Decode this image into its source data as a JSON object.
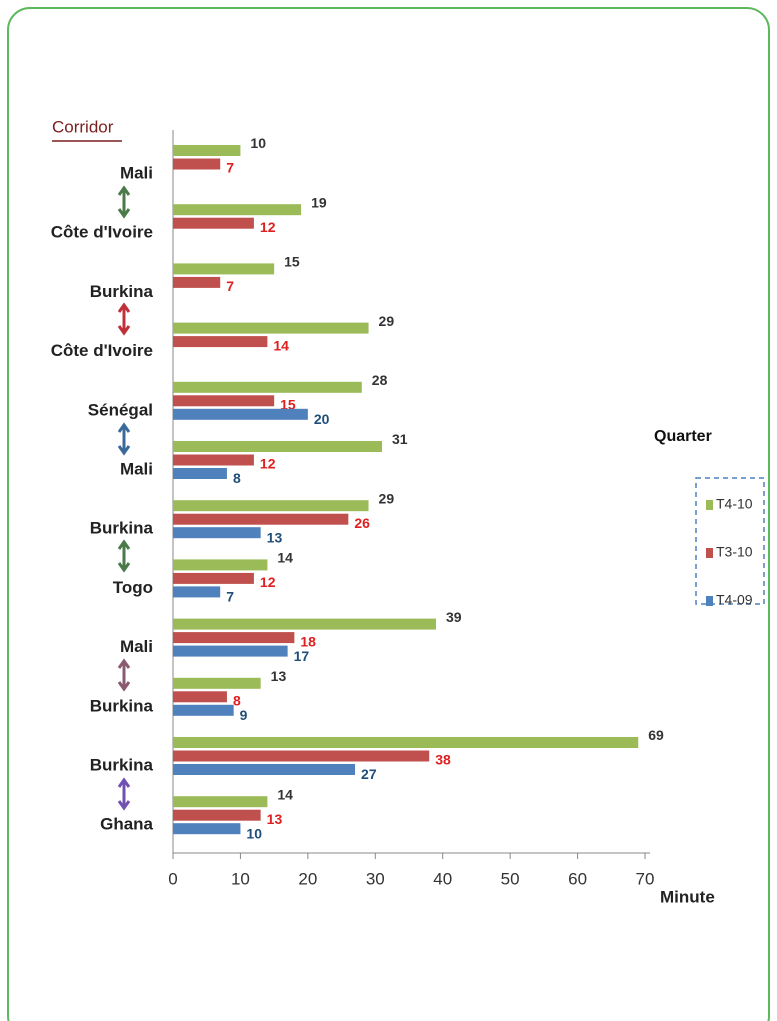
{
  "chart_data": {
    "type": "bar",
    "orientation": "horizontal",
    "y_label": "Corridor",
    "x_label": "Minute",
    "legend_title": "Quarter",
    "categories": [
      "Mali",
      "Côte d'Ivoire",
      "Burkina",
      "Côte d'Ivoire",
      "Sénégal",
      "Mali",
      "Burkina",
      "Togo",
      "Mali",
      "Burkina",
      "Burkina",
      "Ghana"
    ],
    "series": [
      {
        "name": "T4-10",
        "color": "#9bbb59",
        "values": [
          10,
          19,
          15,
          29,
          28,
          31,
          29,
          14,
          39,
          13,
          69,
          14
        ]
      },
      {
        "name": "T3-10",
        "color": "#c0504d",
        "values": [
          7,
          12,
          7,
          14,
          15,
          12,
          26,
          12,
          18,
          8,
          38,
          13
        ]
      },
      {
        "name": "T4-09",
        "color": "#4f81bd",
        "values": [
          null,
          null,
          null,
          null,
          20,
          8,
          13,
          7,
          17,
          9,
          27,
          10
        ]
      }
    ],
    "xlim": [
      0,
      70
    ],
    "xticks": [
      0,
      10,
      20,
      30,
      40,
      50,
      60,
      70
    ]
  }
}
